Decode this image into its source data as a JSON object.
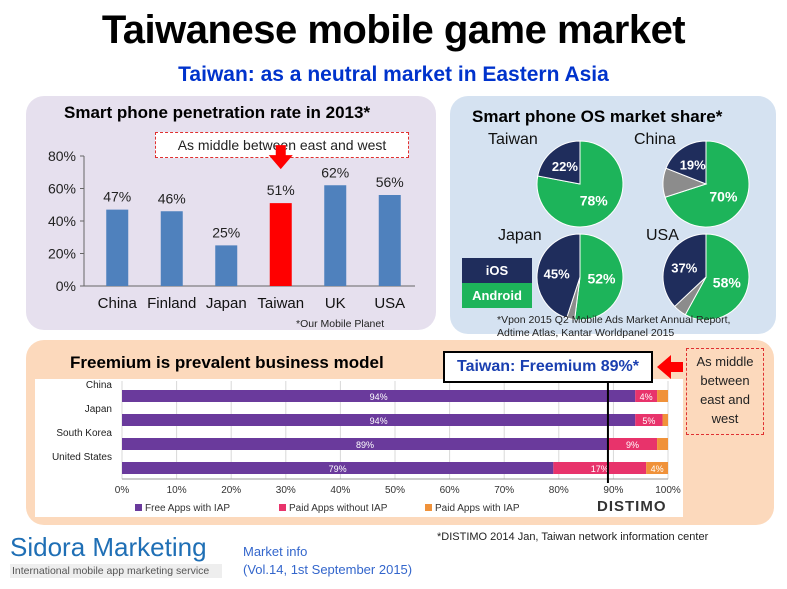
{
  "title": "Taiwanese mobile game market",
  "subtitle": "Taiwan: as a neutral market in Eastern Asia",
  "penetration": {
    "title": "Smart phone penetration rate in 2013*",
    "callout": "As middle between east and west",
    "source": "*Our Mobile Planet"
  },
  "os_share": {
    "title": "Smart phone OS market share*",
    "legend_ios": "iOS",
    "legend_android": "Android",
    "source_line1": "*Vpon 2015 Q2 Mobile Ads Market Annual Report,",
    "source_line2": "Adtime Atlas, Kantar Worldpanel 2015"
  },
  "freemium": {
    "title": "Freemium is prevalent business model",
    "highlight": "Taiwan: Freemium 89%*",
    "callout": "As middle between east and west",
    "brand": "DISTIMO",
    "source": "*DISTIMO 2014 Jan, Taiwan network information center"
  },
  "footer": {
    "logo": "Sidora Marketing",
    "logo_sub": "International mobile app marketing service",
    "info_line1": "Market info",
    "info_line2": "(Vol.14, 1st September 2015)"
  },
  "colors": {
    "bar_blue": "#4f81bd",
    "bar_red": "#ff0000",
    "ios_navy": "#1f2d5c",
    "android_green": "#1db45a",
    "other_gray": "#8c8c8c",
    "free_iap": "#6a3a9c",
    "paid_no_iap": "#e8336b",
    "paid_iap": "#f0923a"
  },
  "chart_data": [
    {
      "type": "bar",
      "title": "Smart phone penetration rate in 2013*",
      "categories": [
        "China",
        "Finland",
        "Japan",
        "Taiwan",
        "UK",
        "USA"
      ],
      "values": [
        47,
        46,
        25,
        51,
        62,
        56
      ],
      "value_labels": [
        "47%",
        "46%",
        "25%",
        "51%",
        "62%",
        "56%"
      ],
      "highlight": "Taiwan",
      "yticks": [
        "0%",
        "20%",
        "40%",
        "60%",
        "80%"
      ],
      "ylim": [
        0,
        80
      ],
      "grid": false
    },
    {
      "type": "pie",
      "title": "Smart phone OS market share*",
      "pies": [
        {
          "name": "Taiwan",
          "ios": 22,
          "android": 78,
          "ios_label": "22%",
          "android_label": "78%"
        },
        {
          "name": "China",
          "ios": 19,
          "android": 70,
          "ios_label": "19%",
          "android_label": "70%"
        },
        {
          "name": "Japan",
          "ios": 45,
          "android": 52,
          "ios_label": "45%",
          "android_label": "52%"
        },
        {
          "name": "USA",
          "ios": 37,
          "android": 58,
          "ios_label": "37%",
          "android_label": "58%"
        }
      ],
      "legend": [
        "iOS",
        "Android"
      ]
    },
    {
      "type": "bar",
      "orientation": "horizontal",
      "stacked": true,
      "title": "Freemium is prevalent business model",
      "categories": [
        "China",
        "Japan",
        "South Korea",
        "United States"
      ],
      "series": [
        {
          "name": "Free Apps with IAP",
          "values": [
            94,
            94,
            89,
            79
          ],
          "labels": [
            "94%",
            "94%",
            "89%",
            "79%"
          ]
        },
        {
          "name": "Paid Apps without IAP",
          "values": [
            4,
            5,
            9,
            17
          ],
          "labels": [
            "4%",
            "5%",
            "9%",
            "17%"
          ]
        },
        {
          "name": "Paid Apps with IAP",
          "values": [
            2,
            1,
            2,
            4
          ],
          "labels": [
            "",
            "",
            "",
            "4%"
          ]
        }
      ],
      "xticks": [
        "0%",
        "10%",
        "20%",
        "30%",
        "40%",
        "50%",
        "60%",
        "70%",
        "80%",
        "90%",
        "100%"
      ],
      "xlim": [
        0,
        100
      ],
      "reference_line": 89,
      "grid": true,
      "legend_position": "bottom"
    }
  ]
}
